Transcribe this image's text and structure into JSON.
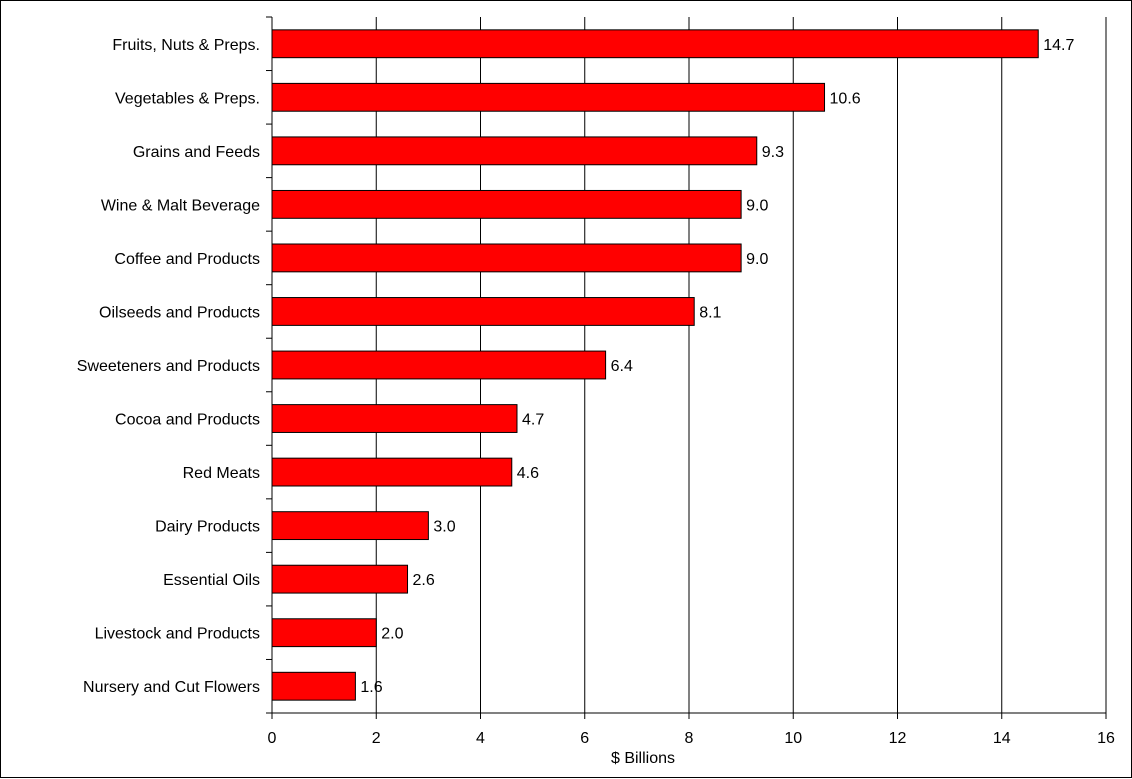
{
  "chart_data": {
    "type": "bar",
    "orientation": "horizontal",
    "title": "",
    "xlabel": "$ Billions",
    "ylabel": "",
    "xlim": [
      0,
      16
    ],
    "xticks": [
      0,
      2,
      4,
      6,
      8,
      10,
      12,
      14,
      16
    ],
    "grid": "vertical major gridlines",
    "legend": "none",
    "bar_color": "#ff0000",
    "categories": [
      "Fruits, Nuts & Preps.",
      "Vegetables & Preps.",
      "Grains and Feeds",
      "Wine & Malt Beverage",
      "Coffee and Products",
      "Oilseeds and Products",
      "Sweeteners and Products",
      "Cocoa and Products",
      "Red Meats",
      "Dairy Products",
      "Essential Oils",
      "Livestock and Products",
      "Nursery and Cut Flowers"
    ],
    "values": [
      14.7,
      10.6,
      9.3,
      9.0,
      9.0,
      8.1,
      6.4,
      4.7,
      4.6,
      3.0,
      2.6,
      2.0,
      1.6
    ],
    "value_labels": [
      "14.7",
      "10.6",
      "9.3",
      "9.0",
      "9.0",
      "8.1",
      "6.4",
      "4.7",
      "4.6",
      "3.0",
      "2.6",
      "2.0",
      "1.6"
    ]
  }
}
